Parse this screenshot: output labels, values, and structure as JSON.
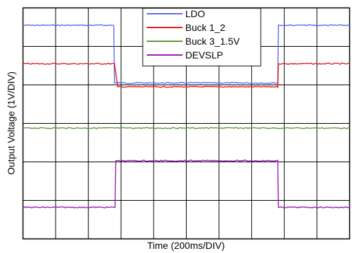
{
  "chart_data": {
    "type": "line",
    "title": "",
    "xlabel": "Time (200ms/DIV)",
    "ylabel": "Output Voltage (1V/DIV)",
    "xlim": [
      0,
      10
    ],
    "ylim": [
      0,
      6
    ],
    "x_divisions": 10,
    "y_divisions": 6,
    "grid": true,
    "legend_position": "top-center",
    "series": [
      {
        "name": "LDO",
        "color": "#5a6cf0",
        "x": [
          0,
          2.78,
          2.8,
          7.8,
          7.82,
          10
        ],
        "y": [
          5.55,
          5.55,
          4.05,
          4.05,
          5.55,
          5.55
        ]
      },
      {
        "name": "Buck 1_2",
        "color": "#e8171c",
        "x": [
          0,
          2.8,
          2.9,
          7.8,
          7.82,
          10
        ],
        "y": [
          4.55,
          4.55,
          3.95,
          3.95,
          4.55,
          4.55
        ]
      },
      {
        "name": "Buck 3_1.5V",
        "color": "#5b9b3a",
        "x": [
          0,
          10
        ],
        "y": [
          2.88,
          2.88
        ]
      },
      {
        "name": "DEVSLP",
        "color": "#9a1ab8",
        "x": [
          0,
          2.82,
          2.84,
          7.8,
          7.82,
          10
        ],
        "y": [
          0.82,
          0.82,
          2.03,
          2.03,
          0.82,
          0.82
        ]
      }
    ]
  }
}
